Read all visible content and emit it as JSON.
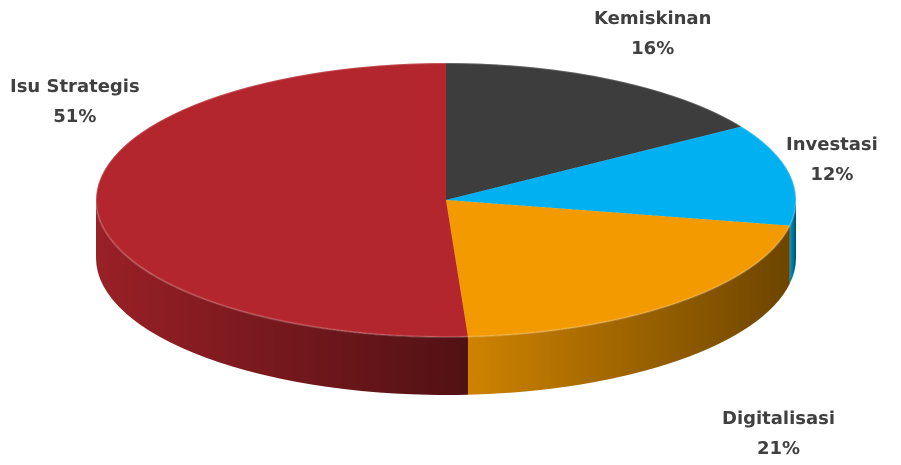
{
  "chart_data": {
    "type": "pie",
    "style": "3d",
    "slices": [
      {
        "label": "Kemiskinan",
        "value": 16,
        "display": "16%",
        "color": "#3d3d3d"
      },
      {
        "label": "Investasi",
        "value": 12,
        "display": "12%",
        "color": "#00b0f0"
      },
      {
        "label": "Digitalisasi",
        "value": 21,
        "display": "21%",
        "color": "#f29a00"
      },
      {
        "label": "Isu Strategis",
        "value": 51,
        "display": "51%",
        "color": "#b4262d"
      }
    ],
    "legend": "none"
  }
}
